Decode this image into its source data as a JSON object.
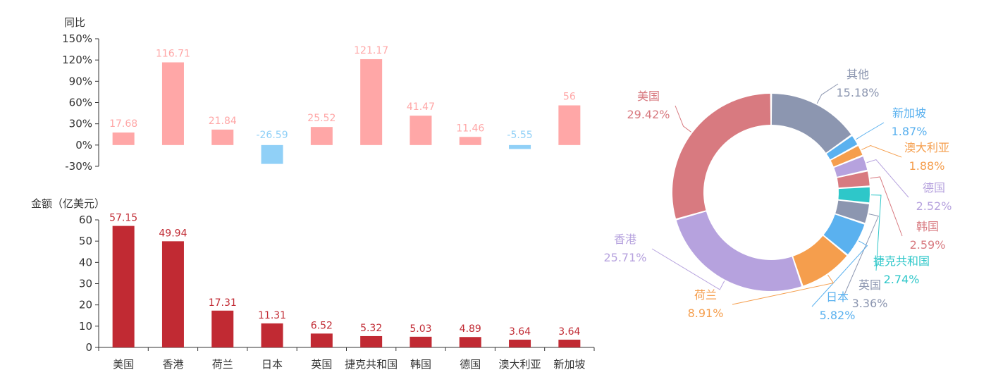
{
  "colors": {
    "positive": "#FFA7A7",
    "negative": "#90D0F7",
    "amount_bar": "#C12A33",
    "amount_label": "#C12A33",
    "axis": "#333333",
    "text": "#333333"
  },
  "chart_data": [
    {
      "type": "bar",
      "ylabel": "同比",
      "ylim": [
        -30,
        150
      ],
      "yticks": [
        "150%",
        "120%",
        "90%",
        "60%",
        "30%",
        "0%",
        "-30%"
      ],
      "ytick_values": [
        150,
        120,
        90,
        60,
        30,
        0,
        -30
      ],
      "categories": [
        "美国",
        "香港",
        "荷兰",
        "日本",
        "英国",
        "捷克共和国",
        "韩国",
        "德国",
        "澳大利亚",
        "新加坡"
      ],
      "values": [
        17.68,
        116.71,
        21.84,
        -26.59,
        25.52,
        121.17,
        41.47,
        11.46,
        -5.55,
        56
      ],
      "labels": [
        "17.68",
        "116.71",
        "21.84",
        "-26.59",
        "25.52",
        "121.17",
        "41.47",
        "11.46",
        "-5.55",
        "56"
      ]
    },
    {
      "type": "bar",
      "ylabel": "金额（亿美元）",
      "ylim": [
        0,
        60
      ],
      "yticks": [
        "60",
        "50",
        "40",
        "30",
        "20",
        "10",
        "0"
      ],
      "ytick_values": [
        60,
        50,
        40,
        30,
        20,
        10,
        0
      ],
      "categories": [
        "美国",
        "香港",
        "荷兰",
        "日本",
        "英国",
        "捷克共和国",
        "韩国",
        "德国",
        "澳大利亚",
        "新加坡"
      ],
      "values": [
        57.15,
        49.94,
        17.31,
        11.31,
        6.52,
        5.32,
        5.03,
        4.89,
        3.64,
        3.64
      ],
      "labels": [
        "57.15",
        "49.94",
        "17.31",
        "11.31",
        "6.52",
        "5.32",
        "5.03",
        "4.89",
        "3.64",
        "3.64"
      ]
    },
    {
      "type": "pie",
      "variant": "donut",
      "slices": [
        {
          "name": "其他",
          "value": 15.18,
          "label": "15.18%",
          "color": "#8C96B0"
        },
        {
          "name": "新加坡",
          "value": 1.87,
          "label": "1.87%",
          "color": "#5AB1EF"
        },
        {
          "name": "澳大利亚",
          "value": 1.88,
          "label": "1.88%",
          "color": "#F59E4D"
        },
        {
          "name": "德国",
          "value": 2.52,
          "label": "2.52%",
          "color": "#B6A2DE"
        },
        {
          "name": "韩国",
          "value": 2.59,
          "label": "2.59%",
          "color": "#D87A80"
        },
        {
          "name": "捷克共和国",
          "value": 2.74,
          "label": "2.74%",
          "color": "#2EC7C9"
        },
        {
          "name": "英国",
          "value": 3.36,
          "label": "3.36%",
          "color": "#8C96B0"
        },
        {
          "name": "日本",
          "value": 5.82,
          "label": "5.82%",
          "color": "#5AB1EF"
        },
        {
          "name": "荷兰",
          "value": 8.91,
          "label": "8.91%",
          "color": "#F59E4D"
        },
        {
          "name": "香港",
          "value": 25.71,
          "label": "25.71%",
          "color": "#B6A2DE"
        },
        {
          "name": "美国",
          "value": 29.42,
          "label": "29.42%",
          "color": "#D87A80"
        }
      ]
    }
  ]
}
